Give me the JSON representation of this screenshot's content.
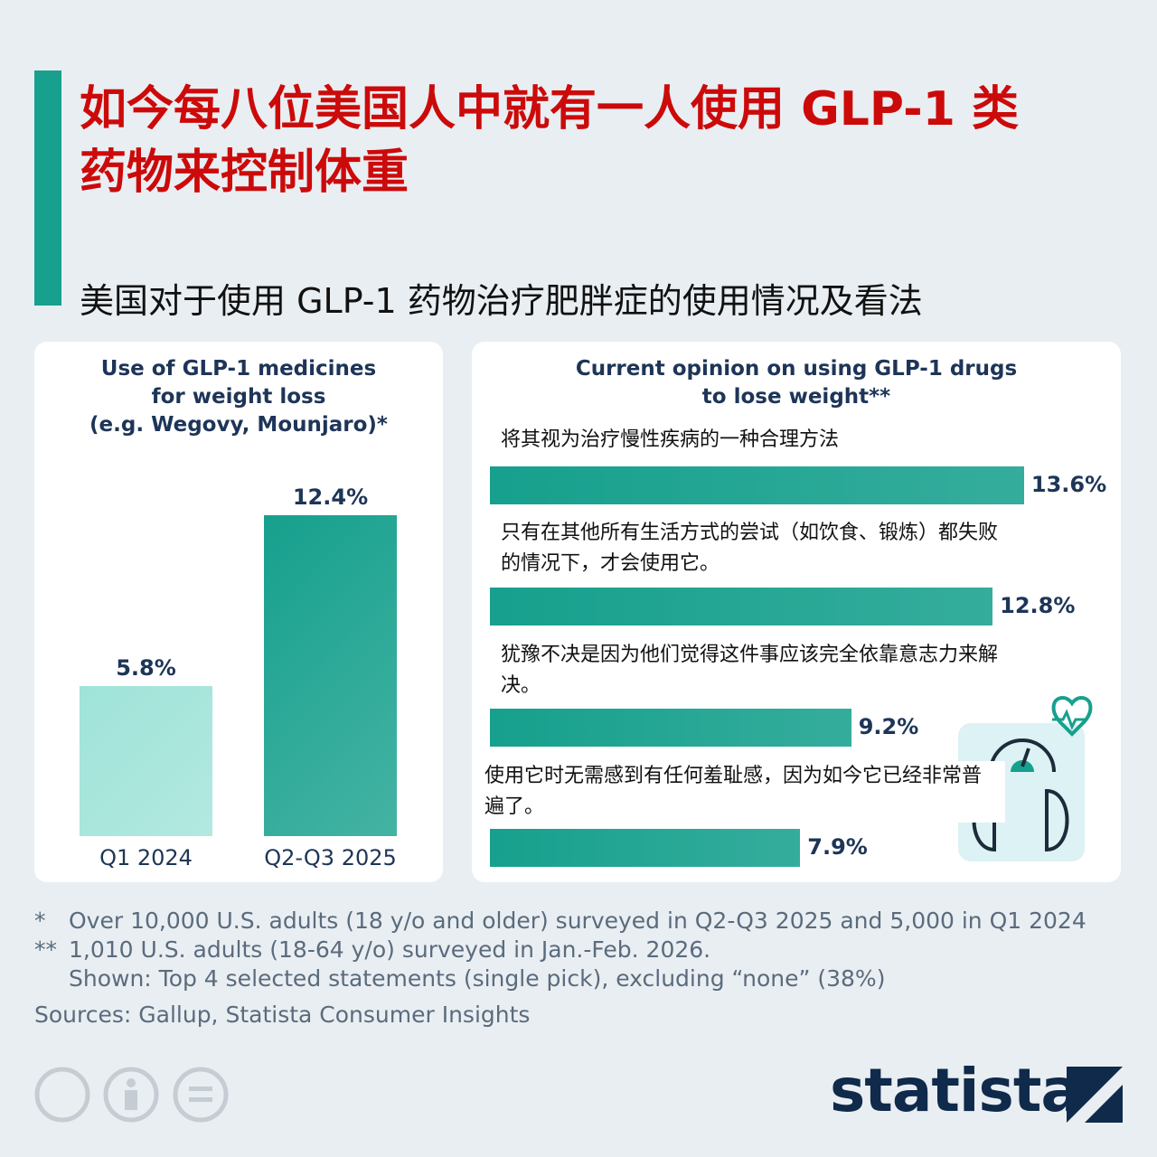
{
  "header": {
    "title": "如今每八位美国人中就有一人使用 GLP-1 类药物来控制体重",
    "subtitle": "美国对于使用 GLP-1 药物治疗肥胖症的使用情况及看法"
  },
  "chart_data": [
    {
      "type": "bar",
      "orientation": "vertical",
      "title": "Use of GLP-1 medicines\nfor weight loss\n(e.g. Wegovy, Mounjaro)*",
      "categories": [
        "Q1 2024",
        "Q2-Q3 2025"
      ],
      "values": [
        5.8,
        12.4
      ],
      "value_labels": [
        "5.8%",
        "12.4%"
      ],
      "colors": [
        "#9fe3d8",
        "#16a08d"
      ]
    },
    {
      "type": "bar",
      "orientation": "horizontal",
      "title": "Current opinion on using GLP-1 drugs\nto lose weight**",
      "categories": [
        "将其视为治疗慢性疾病的一种合理方法",
        "只有在其他所有生活方式的尝试（如饮食、锻炼）都失败的情况下，才会使用它。",
        "犹豫不决是因为他们觉得这件事应该完全依靠意志力来解决。",
        "使用它时无需感到有任何羞耻感，因为如今它已经非常普遍了。"
      ],
      "values": [
        13.6,
        12.8,
        9.2,
        7.9
      ],
      "value_labels": [
        "13.6%",
        "12.8%",
        "9.2%",
        "7.9%"
      ],
      "color": "#16a08d"
    }
  ],
  "footnotes": [
    {
      "mark": "*",
      "text": "Over 10,000 U.S. adults (18 y/o and older) surveyed in Q2-Q3 2025 and 5,000 in Q1 2024"
    },
    {
      "mark": "**",
      "text": "1,010 U.S. adults (18-64 y/o) surveyed in Jan.-Feb. 2026.\nShown: Top 4 selected statements (single pick), excluding “none” (38%)"
    }
  ],
  "source": "Sources: Gallup, Statista Consumer Insights",
  "logo": "statista"
}
